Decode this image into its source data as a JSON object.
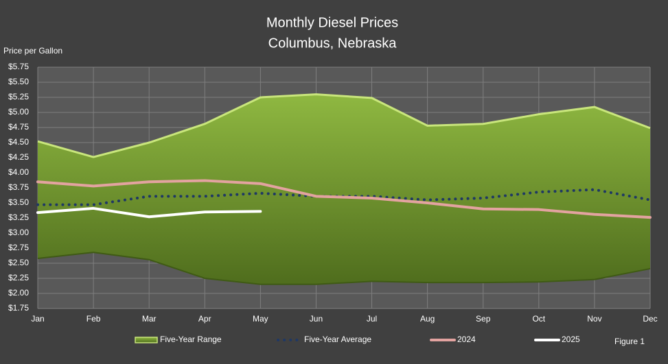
{
  "chart_data": {
    "type": "line",
    "title": "Monthly Diesel Prices",
    "subtitle": "Columbus, Nebraska",
    "y_label": "Price per Gallon",
    "annotation": "Figure 1",
    "categories": [
      "Jan",
      "Feb",
      "Mar",
      "Apr",
      "May",
      "Jun",
      "Jul",
      "Aug",
      "Sep",
      "Oct",
      "Nov",
      "Dec"
    ],
    "range": {
      "name": "Five-Year Range",
      "color": "#7fa534",
      "edge_color": "#c9e67c",
      "upper": [
        4.52,
        4.26,
        4.5,
        4.81,
        5.25,
        5.3,
        5.24,
        4.78,
        4.81,
        4.97,
        5.09,
        4.74
      ],
      "lower": [
        2.58,
        2.68,
        2.56,
        2.25,
        2.15,
        2.15,
        2.2,
        2.18,
        2.18,
        2.19,
        2.23,
        2.41
      ]
    },
    "series": [
      {
        "name": "Five-Year Average",
        "color": "#1f3864",
        "dotted": true,
        "values": [
          3.47,
          3.47,
          3.61,
          3.61,
          3.66,
          3.61,
          3.61,
          3.55,
          3.58,
          3.68,
          3.72,
          3.55
        ]
      },
      {
        "name": "2024",
        "color": "#e3a3a0",
        "values": [
          3.85,
          3.78,
          3.85,
          3.87,
          3.82,
          3.61,
          3.58,
          3.5,
          3.4,
          3.39,
          3.31,
          3.26
        ]
      },
      {
        "name": "2025",
        "color": "#ffffff",
        "values": [
          3.34,
          3.41,
          3.27,
          3.35,
          3.36,
          null,
          null,
          null,
          null,
          null,
          null,
          null
        ]
      }
    ],
    "ylim": [
      1.75,
      5.75
    ],
    "yticks": [
      {
        "value": 1.75,
        "label": "$1.75"
      },
      {
        "value": 2.0,
        "label": "$2.00"
      },
      {
        "value": 2.25,
        "label": "$2.25"
      },
      {
        "value": 2.5,
        "label": "$2.50"
      },
      {
        "value": 2.75,
        "label": "$2.75"
      },
      {
        "value": 3.0,
        "label": "$3.00"
      },
      {
        "value": 3.25,
        "label": "$3.25"
      },
      {
        "value": 3.5,
        "label": "$3.50"
      },
      {
        "value": 3.75,
        "label": "$3.75"
      },
      {
        "value": 4.0,
        "label": "$4.00"
      },
      {
        "value": 4.25,
        "label": "$4.25"
      },
      {
        "value": 4.5,
        "label": "$4.50"
      },
      {
        "value": 4.75,
        "label": "$4.75"
      },
      {
        "value": 5.0,
        "label": "$5.00"
      },
      {
        "value": 5.25,
        "label": "$5.25"
      },
      {
        "value": 5.5,
        "label": "$5.50"
      },
      {
        "value": 5.75,
        "label": "$5.75"
      }
    ],
    "grid": true
  }
}
